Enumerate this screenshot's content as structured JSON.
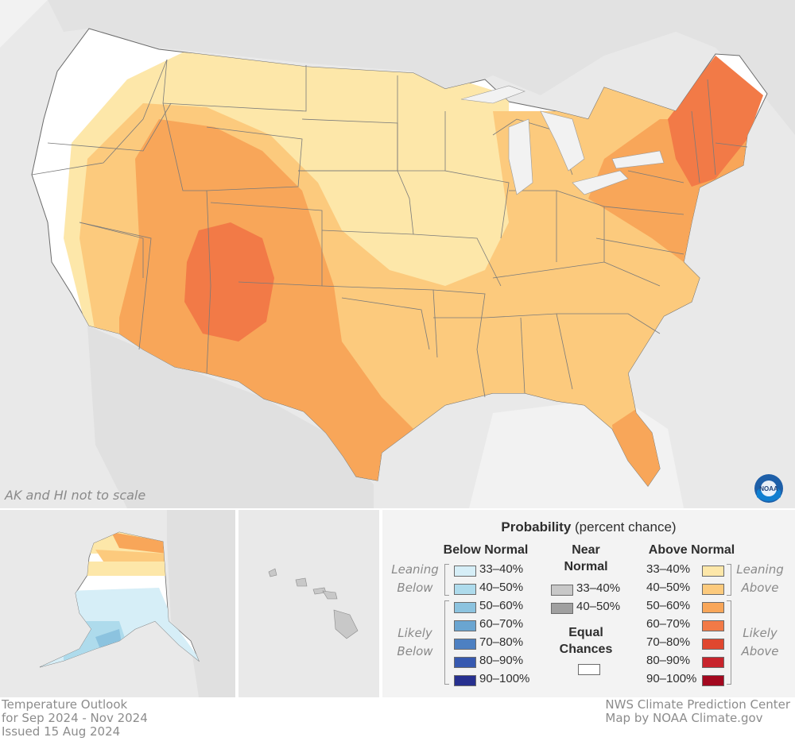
{
  "footer": {
    "title": "Temperature Outlook",
    "period": "for Sep 2024 - Nov 2024",
    "issued": "Issued 15 Aug 2024",
    "credit1": "NWS Climate Prediction Center",
    "credit2": "Map by NOAA Climate.gov"
  },
  "map": {
    "scale_note": "AK and HI not to scale",
    "logo_text": "NOAA"
  },
  "legend": {
    "title_bold": "Probability",
    "title_rest": " (percent chance)",
    "below_header": "Below Normal",
    "near_header_1": "Near",
    "near_header_2": "Normal",
    "above_header": "Above Normal",
    "equal_1": "Equal",
    "equal_2": "Chances",
    "leaning_below_1": "Leaning",
    "leaning_below_2": "Below",
    "likely_below_1": "Likely",
    "likely_below_2": "Below",
    "leaning_above_1": "Leaning",
    "leaning_above_2": "Above",
    "likely_above_1": "Likely",
    "likely_above_2": "Above",
    "below": [
      {
        "label": "33–40%",
        "color": "#d6eef7"
      },
      {
        "label": "40–50%",
        "color": "#aedbec"
      },
      {
        "label": "50–60%",
        "color": "#8cc3df"
      },
      {
        "label": "60–70%",
        "color": "#6aa5d1"
      },
      {
        "label": "70–80%",
        "color": "#4d80c2"
      },
      {
        "label": "80–90%",
        "color": "#3759b0"
      },
      {
        "label": "90–100%",
        "color": "#27308f"
      }
    ],
    "near": [
      {
        "label": "33–40%",
        "color": "#c8c8c8"
      },
      {
        "label": "40–50%",
        "color": "#a0a0a0"
      }
    ],
    "above": [
      {
        "label": "33–40%",
        "color": "#fde7a9"
      },
      {
        "label": "40–50%",
        "color": "#fcca7d"
      },
      {
        "label": "50–60%",
        "color": "#f8a659"
      },
      {
        "label": "60–70%",
        "color": "#f27a47"
      },
      {
        "label": "70–80%",
        "color": "#e0472f"
      },
      {
        "label": "80–90%",
        "color": "#c8242c"
      },
      {
        "label": "90–100%",
        "color": "#a3081f"
      }
    ],
    "equal_color": "#ffffff"
  }
}
